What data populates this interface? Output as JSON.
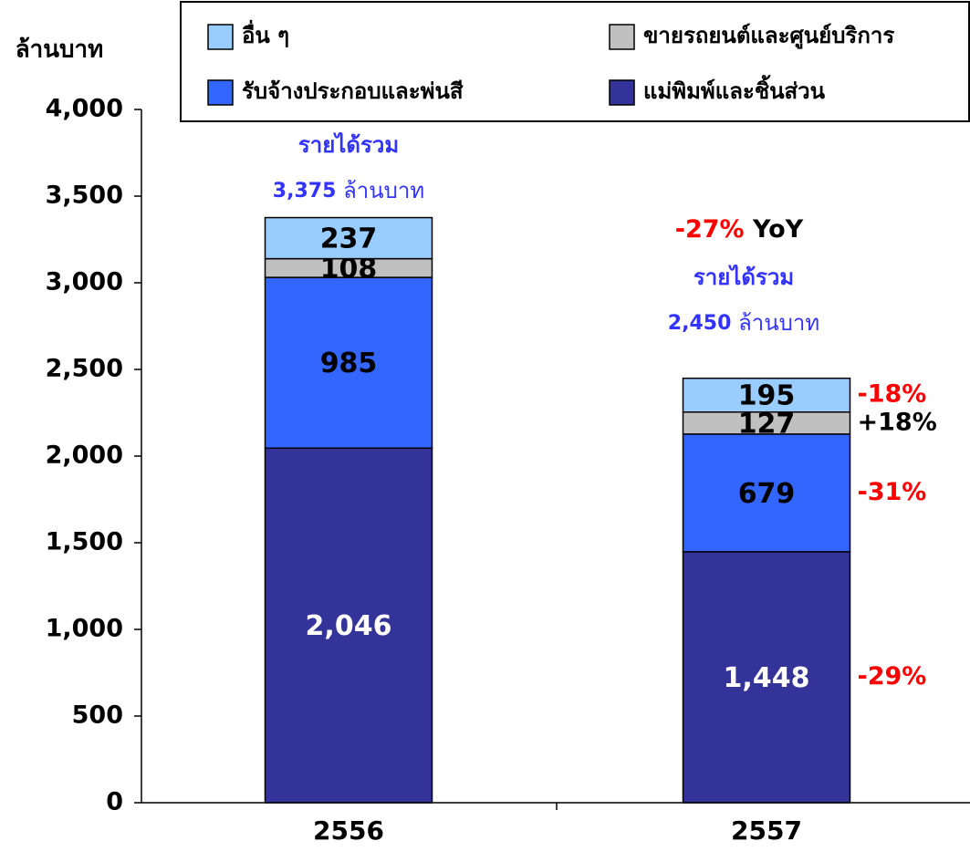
{
  "chart_data": {
    "type": "stacked_bar",
    "y_label": "ล้านบาท",
    "categories": [
      "2556",
      "2557"
    ],
    "series": [
      {
        "name": "แม่พิมพ์และชิ้นส่วน",
        "color": "#333399",
        "label_color": "#ffffff",
        "values": [
          2046,
          1448
        ],
        "value_labels": [
          "2,046",
          "1,448"
        ],
        "change": "-29%",
        "change_color": "#ff0000"
      },
      {
        "name": "รับจ้างประกอบและพ่นสี",
        "color": "#3366ff",
        "label_color": "#000000",
        "values": [
          985,
          679
        ],
        "value_labels": [
          "985",
          "679"
        ],
        "change": "-31%",
        "change_color": "#ff0000"
      },
      {
        "name": "ขายรถยนต์และศูนย์บริการ",
        "color": "#c0c0c0",
        "label_color": "#000000",
        "values": [
          108,
          127
        ],
        "value_labels": [
          "108",
          "127"
        ],
        "change": "+18%",
        "change_color": "#000000"
      },
      {
        "name": "อื่น ๆ",
        "color": "#99ccff",
        "label_color": "#000000",
        "values": [
          237,
          195
        ],
        "value_labels": [
          "237",
          "195"
        ],
        "change": "-18%",
        "change_color": "#ff0000"
      }
    ],
    "totals": [
      {
        "label": "รายได้รวม",
        "value_label": "3,375",
        "unit": "ล้านบาท"
      },
      {
        "label": "รายได้รวม",
        "value_label": "2,450",
        "unit": "ล้านบาท"
      }
    ],
    "yoy": {
      "change": "-27%",
      "label": "YoY"
    },
    "ylim": [
      0,
      4000
    ],
    "yticks": [
      0,
      500,
      {
        "value": 1000,
        "label": "1,000"
      },
      {
        "value": 1500,
        "label": "1,500"
      },
      {
        "value": 2000,
        "label": "2,000"
      },
      {
        "value": 2500,
        "label": "2,500"
      },
      {
        "value": 3000,
        "label": "3,000"
      },
      {
        "value": 3500,
        "label": "3,500"
      },
      {
        "value": 4000,
        "label": "4,000"
      }
    ],
    "legend": "top"
  }
}
